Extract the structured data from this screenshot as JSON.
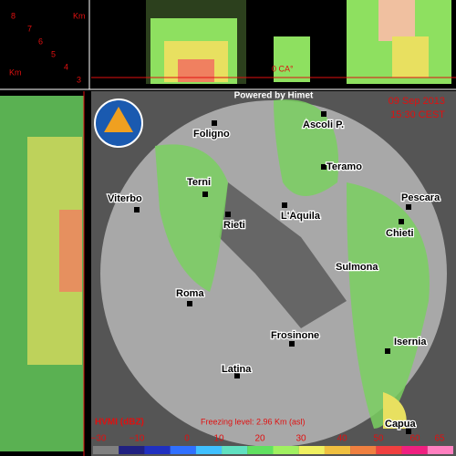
{
  "header": {
    "powered": "Powered by Himet",
    "date": "09 Sep 2013",
    "time": "15:30 CEST"
  },
  "profile": {
    "unit": "Km",
    "heights": [
      "8",
      "7",
      "6",
      "5",
      "4",
      "3"
    ],
    "freezing_mark": "0 CA°",
    "side_unit": "Km"
  },
  "map": {
    "cities": [
      "Foligno",
      "Ascoli P.",
      "Teramo",
      "Terni",
      "Viterbo",
      "Rieti",
      "L'Aquila",
      "Pescara",
      "Chieti",
      "Sulmona",
      "Roma",
      "Frosinone",
      "Isernia",
      "Latina",
      "Capua"
    ]
  },
  "legend": {
    "title": "HVMI (dBZ)",
    "freezing": "Freezing level: 2.96 Km (asl)",
    "labels": [
      "−30",
      "−10",
      "0",
      "10",
      "20",
      "30",
      "40",
      "50",
      "60",
      "65"
    ],
    "colors": [
      "#808080",
      "#202080",
      "#2030c0",
      "#3070ff",
      "#40c0ff",
      "#60e0c0",
      "#60e060",
      "#a0f060",
      "#f0f060",
      "#f0c040",
      "#f08040",
      "#f04040",
      "#f02080",
      "#ff80c0"
    ]
  }
}
